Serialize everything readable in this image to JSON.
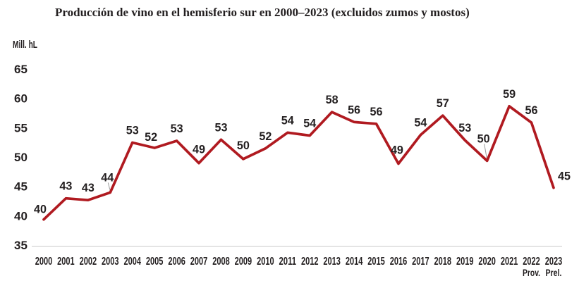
{
  "chart_data": {
    "type": "line",
    "title": "Producción de vino en el hemisferio sur en 2000–2023 (excluidos zumos y mostos)",
    "ylabel": "Mill. hL",
    "xlabel": "",
    "x": [
      "2000",
      "2001",
      "2002",
      "2003",
      "2004",
      "2005",
      "2006",
      "2007",
      "2008",
      "2009",
      "2010",
      "2011",
      "2012",
      "2013",
      "2014",
      "2015",
      "2016",
      "2017",
      "2018",
      "2019",
      "2020",
      "2021",
      "2022",
      "2023"
    ],
    "x_footnotes": {
      "2022": "Prov.",
      "2023": "Prel."
    },
    "values": [
      40,
      43,
      43,
      44,
      53,
      52,
      53,
      49,
      53,
      50,
      52,
      54,
      54,
      58,
      56,
      56,
      49,
      54,
      57,
      53,
      50,
      59,
      56,
      45
    ],
    "values_plot": [
      39.6,
      43.2,
      42.9,
      44.2,
      52.7,
      51.8,
      53.0,
      49.2,
      53.2,
      49.9,
      51.7,
      54.4,
      53.9,
      57.9,
      56.2,
      55.9,
      49.1,
      54.0,
      57.3,
      53.1,
      49.6,
      58.9,
      56.1,
      45.0
    ],
    "label_offsets": {
      "0": [
        -5,
        -15
      ],
      "3": [
        -4,
        -22
      ],
      "5": [
        -5,
        -16
      ],
      "7": [
        0,
        -20
      ],
      "9": [
        0,
        -20
      ],
      "16": [
        -2,
        -20
      ],
      "20": [
        -5,
        -32
      ],
      "23": [
        15,
        -17
      ]
    },
    "default_label_offset": [
      0,
      -18
    ],
    "leader_line_indices": [
      3,
      20
    ],
    "y_ticks": [
      65,
      60,
      55,
      50,
      45,
      40,
      35
    ],
    "ylim": [
      35,
      65
    ],
    "grid": false,
    "legend": "none",
    "point_markers": false,
    "colors": {
      "line": "#b01a20",
      "axis": "#c9c9c9",
      "text": "#231f20",
      "leader": "#9a9a9a"
    }
  }
}
